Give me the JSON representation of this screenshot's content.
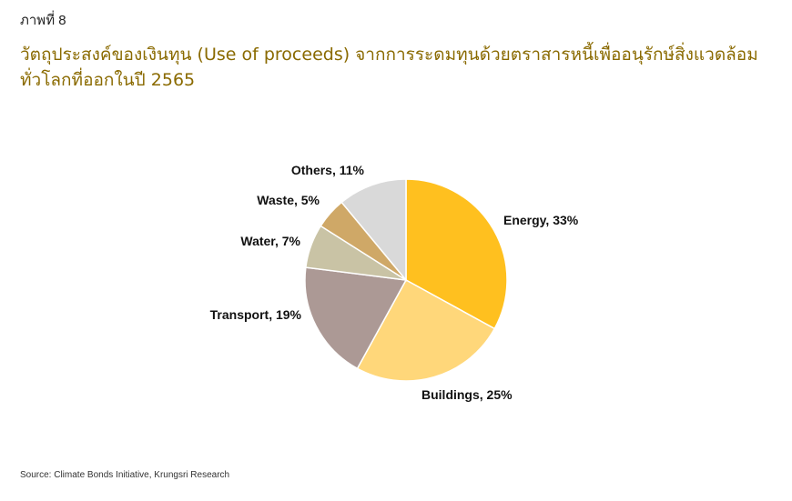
{
  "figure_label": "ภาพที่ 8",
  "title": "วัตถุประสงค์ของเงินทุน (Use of proceeds) จากการระดมทุนด้วยตราสารหนี้เพื่ออนุรักษ์สิ่งแวดล้อมทั่วโลกที่ออกในปี 2565",
  "source": "Source: Climate Bonds Initiative, Krungsri Research",
  "chart_data": {
    "type": "pie",
    "start_angle_deg": 0,
    "direction": "clockwise",
    "slices": [
      {
        "label": "Energy",
        "value": 33,
        "color": "#FFC01F",
        "text": "Energy, 33%"
      },
      {
        "label": "Buildings",
        "value": 25,
        "color": "#FFD77A",
        "text": "Buildings, 25%"
      },
      {
        "label": "Transport",
        "value": 19,
        "color": "#AC9995",
        "text": "Transport, 19%"
      },
      {
        "label": "Water",
        "value": 7,
        "color": "#C9C3A5",
        "text": "Water, 7%"
      },
      {
        "label": "Waste",
        "value": 5,
        "color": "#CFA867",
        "text": "Waste, 5%"
      },
      {
        "label": "Others",
        "value": 11,
        "color": "#D9D9D9",
        "text": "Others, 11%"
      }
    ]
  }
}
